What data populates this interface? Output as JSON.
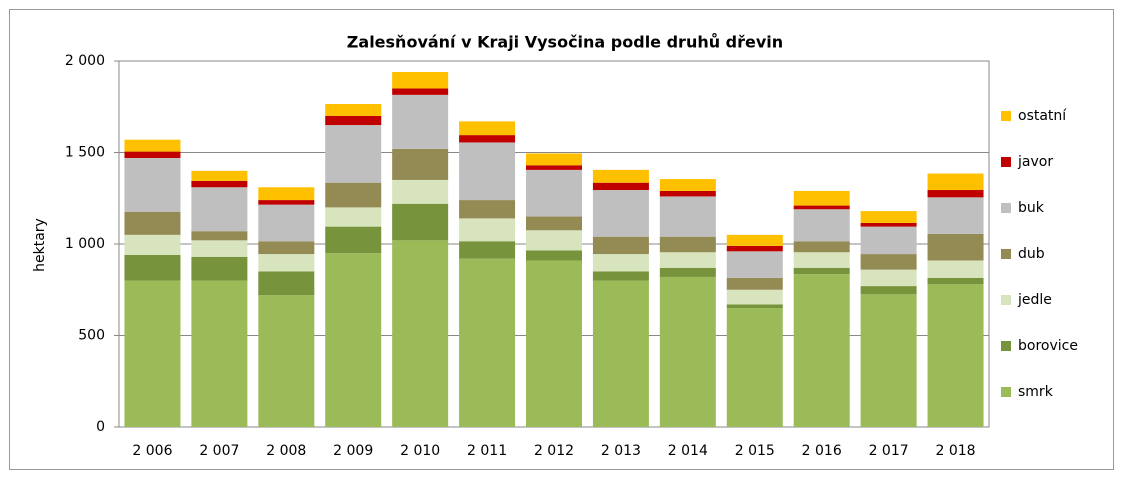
{
  "chart_data": {
    "type": "stacked_bar",
    "title": "Zalesňování v Kraji Vysočina podle druhů dřevin",
    "ylabel": "hektary",
    "categories": [
      "2 006",
      "2 007",
      "2 008",
      "2 009",
      "2 010",
      "2 011",
      "2 012",
      "2 013",
      "2 014",
      "2 015",
      "2 016",
      "2 017",
      "2 018"
    ],
    "series": [
      {
        "name": "smrk",
        "color": "#9bbb59",
        "values": [
          800,
          800,
          720,
          950,
          1020,
          920,
          910,
          800,
          820,
          650,
          835,
          725,
          780
        ]
      },
      {
        "name": "borovice",
        "color": "#77933c",
        "values": [
          140,
          130,
          130,
          145,
          200,
          95,
          55,
          50,
          50,
          20,
          35,
          45,
          35
        ]
      },
      {
        "name": "jedle",
        "color": "#d7e4bd",
        "values": [
          110,
          90,
          95,
          105,
          130,
          125,
          110,
          95,
          85,
          80,
          85,
          90,
          95
        ]
      },
      {
        "name": "dub",
        "color": "#948a54",
        "values": [
          125,
          50,
          70,
          135,
          170,
          100,
          75,
          95,
          85,
          65,
          60,
          85,
          145
        ]
      },
      {
        "name": "buk",
        "color": "#bfbfbf",
        "values": [
          295,
          240,
          200,
          315,
          295,
          315,
          255,
          255,
          220,
          145,
          175,
          150,
          200
        ]
      },
      {
        "name": "javor",
        "color": "#c00000",
        "values": [
          35,
          35,
          25,
          50,
          35,
          40,
          25,
          40,
          30,
          30,
          20,
          20,
          40
        ]
      },
      {
        "name": "ostatní",
        "color": "#ffc000",
        "values": [
          65,
          55,
          70,
          65,
          90,
          75,
          65,
          70,
          65,
          60,
          80,
          65,
          90
        ]
      }
    ],
    "ylim": [
      0,
      2000
    ],
    "yticks": [
      0,
      500,
      {
        "value": 1000,
        "label": "1 000"
      },
      {
        "value": 1500,
        "label": "1 500"
      },
      {
        "value": 2000,
        "label": "2 000"
      }
    ],
    "grid": true,
    "legend": "right"
  }
}
